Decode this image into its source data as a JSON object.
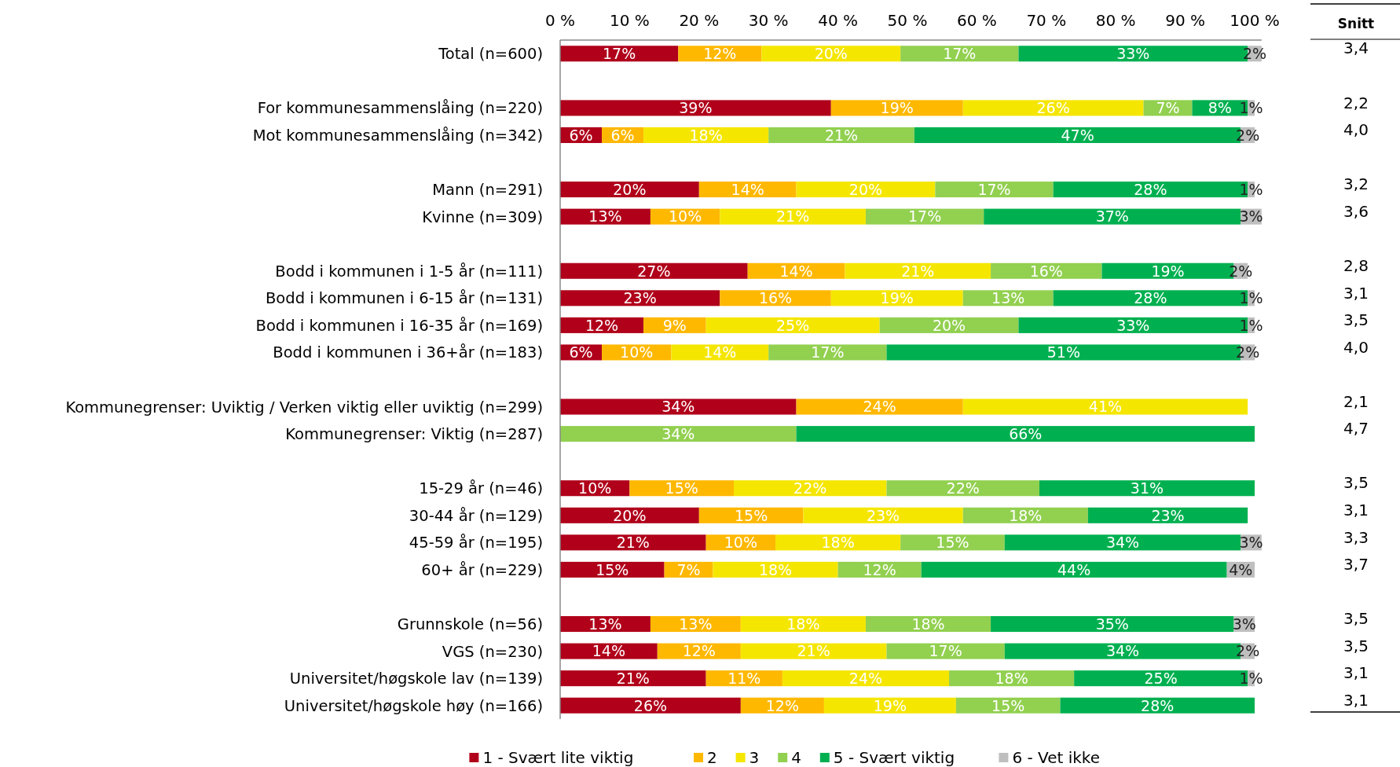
{
  "chart_data": {
    "type": "bar",
    "orientation": "horizontal",
    "stacked": true,
    "legend": "bottom",
    "categories": [
      "Total (n=600)",
      null,
      "For kommunesammenslåing (n=220)",
      "Mot  kommunesammenslåing  (n=342)",
      null,
      "Mann (n=291)",
      "Kvinne (n=309)",
      null,
      "Bodd i kommunen i 1-5 år (n=111)",
      "Bodd i kommunen i 6-15 år (n=131)",
      "Bodd i kommunen i 16-35 år (n=169)",
      "Bodd i kommunen i 36+år (n=183)",
      null,
      "Kommunegrenser: Uviktig / Verken viktig eller uviktig (n=299)",
      "Kommunegrenser: Viktig (n=287)",
      null,
      "15-29 år (n=46)",
      "30-44 år (n=129)",
      "45-59 år (n=195)",
      "60+ år (n=229)",
      null,
      "Grunnskole (n=56)",
      "VGS (n=230)",
      "Universitet/høgskole lav (n=139)",
      "Universitet/høgskole høy (n=166)"
    ],
    "xlim": [
      0,
      101
    ],
    "xticks": [
      {
        "value": 0,
        "label": "0 %"
      },
      {
        "value": 10,
        "label": "10 %"
      },
      {
        "value": 20,
        "label": "20 %"
      },
      {
        "value": 30,
        "label": "30 %"
      },
      {
        "value": 40,
        "label": "40 %"
      },
      {
        "value": 50,
        "label": "50 %"
      },
      {
        "value": 60,
        "label": "60 %"
      },
      {
        "value": 70,
        "label": "70 %"
      },
      {
        "value": 80,
        "label": "80 %"
      },
      {
        "value": 90,
        "label": "90 %"
      },
      {
        "value": 100,
        "label": "100 %"
      }
    ],
    "series": [
      {
        "name": "1 - Svært lite viktig",
        "color": "#b0001a",
        "values": [
          17,
          null,
          39,
          6,
          null,
          20,
          13,
          null,
          27,
          23,
          12,
          6,
          null,
          34,
          null,
          null,
          10,
          20,
          21,
          15,
          null,
          13,
          14,
          21,
          26
        ],
        "value_labels": [
          "17%",
          null,
          "39%",
          "6%",
          null,
          "20%",
          "13%",
          null,
          "27%",
          "23%",
          "12%",
          "6%",
          null,
          "34%",
          null,
          null,
          "10%",
          "20%",
          "21%",
          "15%",
          null,
          "13%",
          "14%",
          "21%",
          "26%"
        ]
      },
      {
        "name": "2",
        "color": "#ffb800",
        "values": [
          12,
          null,
          19,
          6,
          null,
          14,
          10,
          null,
          14,
          16,
          9,
          10,
          null,
          24,
          null,
          null,
          15,
          15,
          10,
          7,
          null,
          13,
          12,
          11,
          12
        ],
        "value_labels": [
          "12%",
          null,
          "19%",
          "6%",
          null,
          "14%",
          "10%",
          null,
          "14%",
          "16%",
          "9%",
          "10%",
          null,
          "24%",
          null,
          null,
          "15%",
          "15%",
          "10%",
          "7%",
          null,
          "13%",
          "12%",
          "11%",
          "12%"
        ]
      },
      {
        "name": "3",
        "color": "#f5e600",
        "values": [
          20,
          null,
          26,
          18,
          null,
          20,
          21,
          null,
          21,
          19,
          25,
          14,
          null,
          41,
          null,
          null,
          22,
          23,
          18,
          18,
          null,
          18,
          21,
          24,
          19
        ],
        "value_labels": [
          "20%",
          null,
          "26%",
          "18%",
          null,
          "20%",
          "21%",
          null,
          "21%",
          "19%",
          "25%",
          "14%",
          null,
          "41%",
          null,
          null,
          "22%",
          "23%",
          "18%",
          "18%",
          null,
          "18%",
          "21%",
          "24%",
          "19%"
        ]
      },
      {
        "name": "4",
        "color": "#92d050",
        "values": [
          17,
          null,
          7,
          21,
          null,
          17,
          17,
          null,
          16,
          13,
          20,
          17,
          null,
          null,
          34,
          null,
          22,
          18,
          15,
          12,
          null,
          18,
          17,
          18,
          15
        ],
        "value_labels": [
          "17%",
          null,
          "7%",
          "21%",
          null,
          "17%",
          "17%",
          null,
          "16%",
          "13%",
          "20%",
          "17%",
          null,
          null,
          "34%",
          null,
          "22%",
          "18%",
          "15%",
          "12%",
          null,
          "18%",
          "17%",
          "18%",
          "15%"
        ]
      },
      {
        "name": "5 - Svært viktig",
        "color": "#00b050",
        "values": [
          33,
          null,
          8,
          47,
          null,
          28,
          37,
          null,
          19,
          28,
          33,
          51,
          null,
          null,
          66,
          null,
          31,
          23,
          34,
          44,
          null,
          35,
          34,
          25,
          28
        ],
        "value_labels": [
          "33%",
          null,
          "8%",
          "47%",
          null,
          "28%",
          "37%",
          null,
          "19%",
          "28%",
          "33%",
          "51%",
          null,
          null,
          "66%",
          null,
          "31%",
          "23%",
          "34%",
          "44%",
          null,
          "35%",
          "34%",
          "25%",
          "28%"
        ]
      },
      {
        "name": "6 - Vet ikke",
        "color": "#bfbfbf",
        "values": [
          2,
          null,
          1,
          2,
          null,
          1,
          3,
          null,
          2,
          1,
          1,
          2,
          null,
          null,
          null,
          null,
          null,
          null,
          3,
          4,
          null,
          3,
          2,
          1,
          null
        ],
        "value_labels": [
          "2%",
          null,
          "1%",
          "2%",
          null,
          "1%",
          "3%",
          null,
          "2%",
          "1%",
          "1%",
          "2%",
          null,
          null,
          null,
          null,
          null,
          null,
          "3%",
          "4%",
          null,
          "3%",
          "2%",
          "1%",
          null
        ]
      }
    ],
    "annotations": [
      "Snitt",
      "3,4",
      "2,2",
      "4,0",
      "3,2",
      "3,6",
      "2,8",
      "3,1",
      "3,5",
      "4,0",
      "2,1",
      "4,7",
      "3,5",
      "3,1",
      "3,3",
      "3,7",
      "3,5",
      "3,5",
      "3,1",
      "3,1"
    ]
  }
}
